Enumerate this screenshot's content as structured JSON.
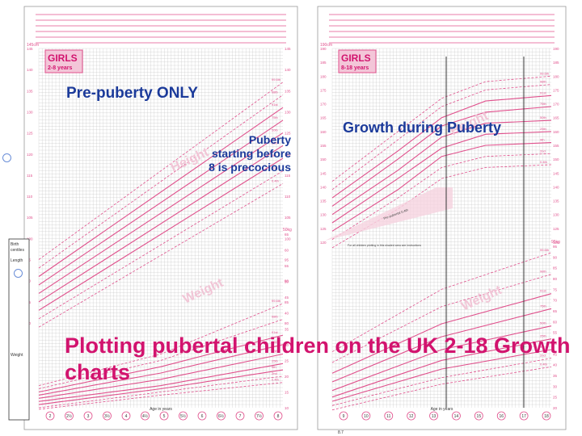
{
  "overlay": {
    "left_caption": "Pre-puberty ONLY",
    "puberty_note": [
      "Puberty",
      "starting before",
      "8 is precocious"
    ],
    "right_caption": "Growth during Puberty",
    "main_title": "Plotting pubertal children on the UK 2-18 Growth charts"
  },
  "chart_data": [
    {
      "type": "line",
      "badge": [
        "GIRLS",
        "2-8 years"
      ],
      "ylabel_top": "Height",
      "ylabel_bottom": "Weight",
      "xlabel": "Age in years",
      "x_ticks": [
        "2",
        "2½",
        "3",
        "3½",
        "4",
        "4½",
        "5",
        "5½",
        "6",
        "6½",
        "7",
        "7½",
        "8"
      ],
      "xlim": [
        2,
        8
      ],
      "height_axis": {
        "unit": "cm",
        "ticks": [
          145,
          140,
          135,
          130,
          125,
          120,
          115,
          110,
          105,
          100,
          95,
          90,
          85,
          80
        ],
        "top_label": "145cm"
      },
      "weight_axis": {
        "unit": "kg",
        "ticks": [
          65,
          60,
          55,
          50,
          45,
          40,
          35,
          30,
          25,
          20,
          15,
          10
        ],
        "top_label": "50kg"
      },
      "side_panel": {
        "header": [
          "Birth",
          "centiles"
        ],
        "length": "Length",
        "weight": "Weight"
      },
      "height_series": [
        {
          "name": "99.6th",
          "x": [
            2,
            8
          ],
          "y": [
            95,
            137
          ]
        },
        {
          "name": "98th",
          "x": [
            2,
            8
          ],
          "y": [
            93,
            134
          ]
        },
        {
          "name": "91st",
          "x": [
            2,
            8
          ],
          "y": [
            91,
            131
          ]
        },
        {
          "name": "75th",
          "x": [
            2,
            8
          ],
          "y": [
            89,
            128
          ]
        },
        {
          "name": "50th",
          "x": [
            2,
            8
          ],
          "y": [
            87,
            125
          ]
        },
        {
          "name": "25th",
          "x": [
            2,
            8
          ],
          "y": [
            85,
            122
          ]
        },
        {
          "name": "9th",
          "x": [
            2,
            8
          ],
          "y": [
            83,
            119
          ]
        },
        {
          "name": "2nd",
          "x": [
            2,
            8
          ],
          "y": [
            81,
            116
          ]
        },
        {
          "name": "0.4th",
          "x": [
            2,
            8
          ],
          "y": [
            79,
            113
          ]
        }
      ],
      "weight_series": [
        {
          "name": "99.6th",
          "x": [
            2,
            5,
            8
          ],
          "y": [
            17,
            27,
            43
          ]
        },
        {
          "name": "98th",
          "x": [
            2,
            5,
            8
          ],
          "y": [
            16,
            25,
            38
          ]
        },
        {
          "name": "91st",
          "x": [
            2,
            5,
            8
          ],
          "y": [
            15,
            23,
            33
          ]
        },
        {
          "name": "75th",
          "x": [
            2,
            5,
            8
          ],
          "y": [
            14,
            21,
            30
          ]
        },
        {
          "name": "50th",
          "x": [
            2,
            5,
            8
          ],
          "y": [
            13,
            19,
            27
          ]
        },
        {
          "name": "25th",
          "x": [
            2,
            5,
            8
          ],
          "y": [
            12,
            17,
            24
          ]
        },
        {
          "name": "9th",
          "x": [
            2,
            5,
            8
          ],
          "y": [
            11,
            16,
            22
          ]
        },
        {
          "name": "2nd",
          "x": [
            2,
            5,
            8
          ],
          "y": [
            10,
            15,
            20
          ]
        },
        {
          "name": "0.4th",
          "x": [
            2,
            5,
            8
          ],
          "y": [
            9.5,
            14,
            18
          ]
        }
      ]
    },
    {
      "type": "line",
      "badge": [
        "GIRLS",
        "8-18 years"
      ],
      "ylabel_top": "Height",
      "ylabel_bottom": "Weight",
      "xlabel": "Age in years",
      "x_ticks": [
        "9",
        "10",
        "11",
        "12",
        "13",
        "14",
        "15",
        "16",
        "17",
        "18"
      ],
      "xlim": [
        8,
        18
      ],
      "height_axis": {
        "unit": "cm",
        "ticks": [
          190,
          185,
          180,
          175,
          170,
          165,
          160,
          155,
          150,
          145,
          140,
          135,
          130,
          125,
          120
        ],
        "top_label": "190cm"
      },
      "weight_axis": {
        "unit": "kg",
        "ticks": [
          95,
          90,
          85,
          80,
          75,
          70,
          65,
          60,
          55,
          50,
          45,
          40,
          35,
          30,
          25,
          20
        ],
        "top_label": "95kg"
      },
      "annotations": [
        "Pre-pubertal 0.4th",
        "For all children plotting in this shaded area see instructions",
        "8.7"
      ],
      "height_series": [
        {
          "name": "99.6th",
          "x": [
            8,
            11,
            13,
            15,
            18
          ],
          "y": [
            142,
            160,
            172,
            178,
            180
          ]
        },
        {
          "name": "98th",
          "x": [
            8,
            11,
            13,
            15,
            18
          ],
          "y": [
            139,
            157,
            169,
            175,
            177
          ]
        },
        {
          "name": "91st",
          "x": [
            8,
            11,
            13,
            15,
            18
          ],
          "y": [
            136,
            153,
            165,
            171,
            173
          ]
        },
        {
          "name": "75th",
          "x": [
            8,
            11,
            13,
            15,
            18
          ],
          "y": [
            133,
            150,
            162,
            167,
            169
          ]
        },
        {
          "name": "50th",
          "x": [
            8,
            11,
            13,
            15,
            18
          ],
          "y": [
            130,
            146,
            158,
            163,
            164
          ]
        },
        {
          "name": "25th",
          "x": [
            8,
            11,
            13,
            15,
            18
          ],
          "y": [
            127,
            143,
            154,
            159,
            160
          ]
        },
        {
          "name": "9th",
          "x": [
            8,
            11,
            13,
            15,
            18
          ],
          "y": [
            124,
            139,
            151,
            155,
            156
          ]
        },
        {
          "name": "2nd",
          "x": [
            8,
            11,
            13,
            15,
            18
          ],
          "y": [
            121,
            136,
            147,
            151,
            152
          ]
        },
        {
          "name": "0.4th",
          "x": [
            8,
            11,
            13,
            15,
            18
          ],
          "y": [
            118,
            132,
            143,
            147,
            148
          ]
        }
      ],
      "weight_series": [
        {
          "name": "99.6th",
          "x": [
            8,
            13,
            18
          ],
          "y": [
            46,
            75,
            92
          ]
        },
        {
          "name": "98th",
          "x": [
            8,
            13,
            18
          ],
          "y": [
            41,
            67,
            82
          ]
        },
        {
          "name": "91st",
          "x": [
            8,
            13,
            18
          ],
          "y": [
            36,
            59,
            73
          ]
        },
        {
          "name": "75th",
          "x": [
            8,
            13,
            18
          ],
          "y": [
            32,
            53,
            66
          ]
        },
        {
          "name": "50th",
          "x": [
            8,
            13,
            18
          ],
          "y": [
            28,
            47,
            58
          ]
        },
        {
          "name": "25th",
          "x": [
            8,
            13,
            18
          ],
          "y": [
            25,
            42,
            52
          ]
        },
        {
          "name": "9th",
          "x": [
            8,
            13,
            18
          ],
          "y": [
            23,
            38,
            47
          ]
        },
        {
          "name": "2nd",
          "x": [
            8,
            13,
            18
          ],
          "y": [
            21,
            34,
            43
          ]
        },
        {
          "name": "0.4th",
          "x": [
            8,
            13,
            18
          ],
          "y": [
            19,
            31,
            39
          ]
        }
      ]
    }
  ],
  "colors": {
    "pink": "#e0508c",
    "magenta": "#d2136e",
    "blue": "#1b3a9a",
    "grid": "#c9c9c9",
    "badge_bg": "#f3c6d8"
  }
}
